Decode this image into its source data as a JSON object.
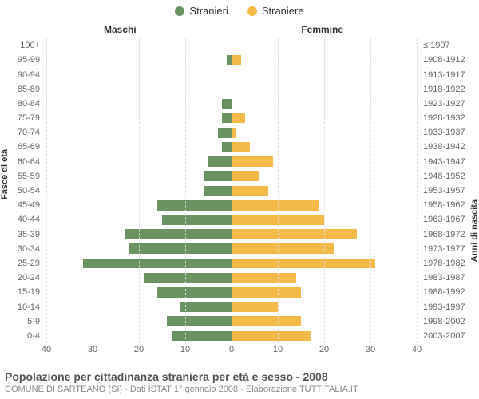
{
  "legend": {
    "male": {
      "label": "Stranieri",
      "color": "#6b9362"
    },
    "female": {
      "label": "Straniere",
      "color": "#f3b949"
    }
  },
  "panels": {
    "left": "Maschi",
    "right": "Femmine"
  },
  "y_axis_left_title": "Fasce di età",
  "y_axis_right_title": "Anni di nascita",
  "title": "Popolazione per cittadinanza straniera per età e sesso - 2008",
  "subtitle": "COMUNE DI SARTEANO (SI) - Dati ISTAT 1° gennaio 2008 - Elaborazione TUTTITALIA.IT",
  "chart": {
    "type": "population-pyramid",
    "xlim": 40,
    "xticks": [
      40,
      30,
      20,
      10,
      0,
      10,
      20,
      30,
      40
    ],
    "grid_color": "#e0e0e0",
    "zero_color": "#b57f2d",
    "background": "#ffffff",
    "bar_left_color": "#6b9362",
    "bar_right_color": "#f3b949",
    "label_fontsize": 11,
    "rows": [
      {
        "age": "0-4",
        "birth": "2003-2007",
        "m": 13,
        "f": 17
      },
      {
        "age": "5-9",
        "birth": "1998-2002",
        "m": 14,
        "f": 15
      },
      {
        "age": "10-14",
        "birth": "1993-1997",
        "m": 11,
        "f": 10
      },
      {
        "age": "15-19",
        "birth": "1988-1992",
        "m": 16,
        "f": 15
      },
      {
        "age": "20-24",
        "birth": "1983-1987",
        "m": 19,
        "f": 14
      },
      {
        "age": "25-29",
        "birth": "1978-1982",
        "m": 32,
        "f": 31
      },
      {
        "age": "30-34",
        "birth": "1973-1977",
        "m": 22,
        "f": 22
      },
      {
        "age": "35-39",
        "birth": "1968-1972",
        "m": 23,
        "f": 27
      },
      {
        "age": "40-44",
        "birth": "1963-1967",
        "m": 15,
        "f": 20
      },
      {
        "age": "45-49",
        "birth": "1958-1962",
        "m": 16,
        "f": 19
      },
      {
        "age": "50-54",
        "birth": "1953-1957",
        "m": 6,
        "f": 8
      },
      {
        "age": "55-59",
        "birth": "1948-1952",
        "m": 6,
        "f": 6
      },
      {
        "age": "60-64",
        "birth": "1943-1947",
        "m": 5,
        "f": 9
      },
      {
        "age": "65-69",
        "birth": "1938-1942",
        "m": 2,
        "f": 4
      },
      {
        "age": "70-74",
        "birth": "1933-1937",
        "m": 3,
        "f": 1
      },
      {
        "age": "75-79",
        "birth": "1928-1932",
        "m": 2,
        "f": 3
      },
      {
        "age": "80-84",
        "birth": "1923-1927",
        "m": 2,
        "f": 0
      },
      {
        "age": "85-89",
        "birth": "1918-1922",
        "m": 0,
        "f": 0
      },
      {
        "age": "90-94",
        "birth": "1913-1917",
        "m": 0,
        "f": 0
      },
      {
        "age": "95-99",
        "birth": "1908-1912",
        "m": 1,
        "f": 2
      },
      {
        "age": "100+",
        "birth": "≤ 1907",
        "m": 0,
        "f": 0
      }
    ]
  }
}
